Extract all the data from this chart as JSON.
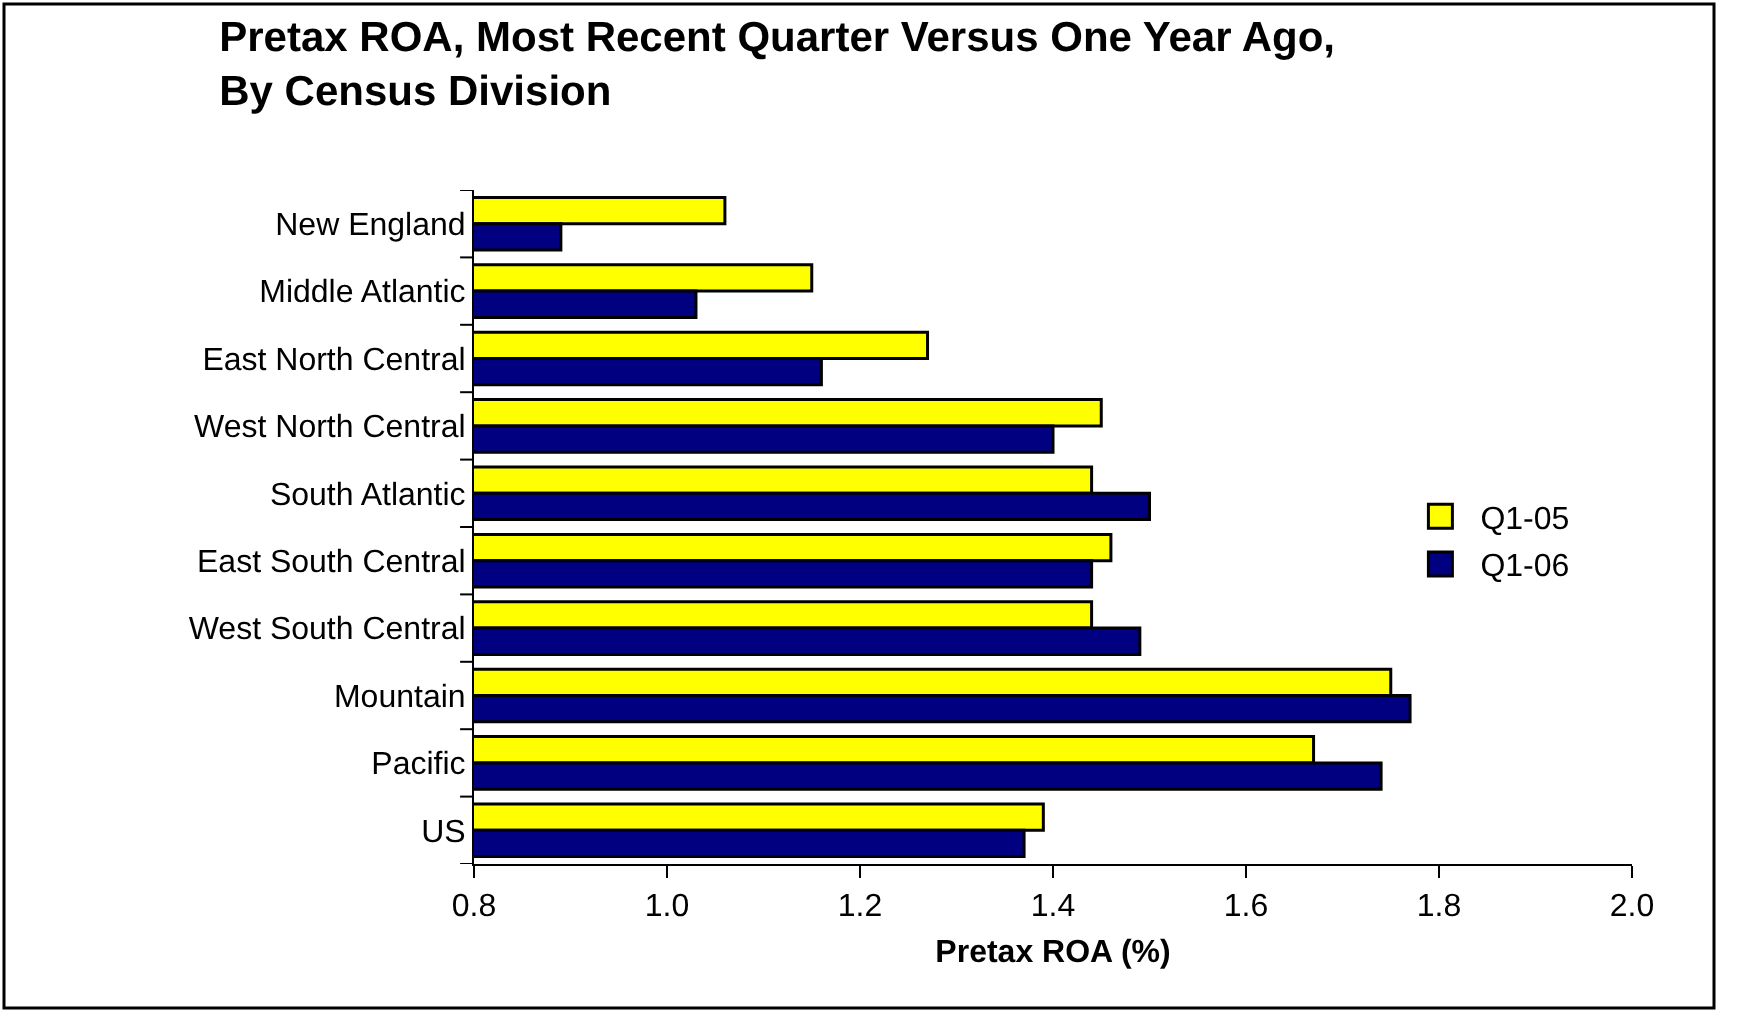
{
  "chart_data": {
    "type": "bar",
    "orientation": "horizontal",
    "title": "Pretax ROA, Most Recent Quarter Versus One Year Ago,\nBy Census Division",
    "xlabel": "Pretax ROA (%)",
    "categories": [
      "New England",
      "Middle Atlantic",
      "East North Central",
      "West North Central",
      "South Atlantic",
      "East South Central",
      "West South Central",
      "Mountain",
      "Pacific",
      "US"
    ],
    "series": [
      {
        "name": "Q1-05",
        "color": "#ffff00",
        "values": [
          1.06,
          1.15,
          1.27,
          1.45,
          1.44,
          1.46,
          1.44,
          1.75,
          1.67,
          1.39
        ]
      },
      {
        "name": "Q1-06",
        "color": "#000080",
        "values": [
          0.89,
          1.03,
          1.16,
          1.4,
          1.5,
          1.44,
          1.49,
          1.77,
          1.74,
          1.37
        ]
      }
    ],
    "xlim": [
      0.8,
      2.0
    ],
    "xticks": [
      {
        "value": 0.8,
        "label": "0.8"
      },
      {
        "value": 1.0,
        "label": "1.0"
      },
      {
        "value": 1.2,
        "label": "1.2"
      },
      {
        "value": 1.4,
        "label": "1.4"
      },
      {
        "value": 1.6,
        "label": "1.6"
      },
      {
        "value": 1.8,
        "label": "1.8"
      },
      {
        "value": 2.0,
        "label": "2.0"
      }
    ],
    "legend": "right"
  }
}
